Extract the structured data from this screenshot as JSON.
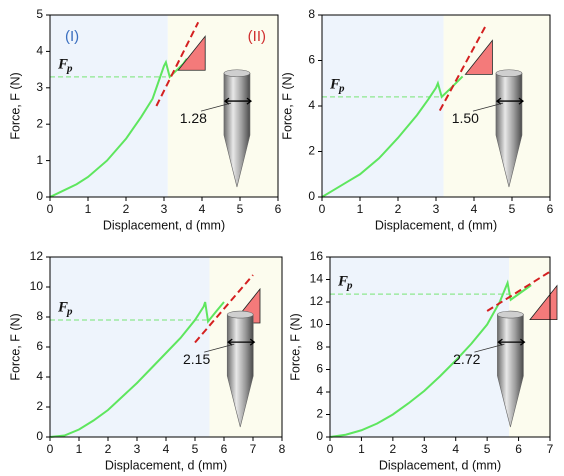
{
  "chart_data": [
    {
      "type": "line",
      "xlabel": "Displacement, d (mm)",
      "ylabel": "Force, F (N)",
      "xlim": [
        0,
        6
      ],
      "ylim": [
        0,
        5
      ],
      "xticks": [
        0,
        1,
        2,
        3,
        4,
        5,
        6
      ],
      "yticks": [
        0,
        1,
        2,
        3,
        4,
        5
      ],
      "region_boundary": 3.1,
      "region_labels": [
        "(I)",
        "(II)"
      ],
      "series": [
        {
          "color": "#5ee65e",
          "x": [
            0,
            0.3,
            0.7,
            1.0,
            1.5,
            2.0,
            2.4,
            2.7,
            2.9,
            3.0,
            3.05,
            3.15,
            3.3,
            3.5,
            3.6
          ],
          "values": [
            0,
            0.15,
            0.35,
            0.55,
            1.0,
            1.6,
            2.2,
            2.7,
            3.3,
            3.6,
            3.7,
            3.3,
            3.45,
            3.65,
            3.8
          ]
        }
      ],
      "fp_line": {
        "x": [
          0,
          3.05
        ],
        "values": [
          3.3,
          3.3
        ]
      },
      "fp_symbol": "F",
      "fp_subscript": "p",
      "tangent": {
        "x": [
          2.8,
          3.9
        ],
        "values": [
          2.5,
          4.8
        ]
      },
      "diameter_label": "1.28"
    },
    {
      "type": "line",
      "xlabel": "Displacement, d (mm)",
      "ylabel": "Force, F (N)",
      "xlim": [
        0,
        6
      ],
      "ylim": [
        0,
        8
      ],
      "xticks": [
        0,
        1,
        2,
        3,
        4,
        5,
        6
      ],
      "yticks": [
        0,
        2,
        4,
        6,
        8
      ],
      "region_boundary": 3.2,
      "series": [
        {
          "color": "#5ee65e",
          "x": [
            0,
            0.3,
            0.7,
            1.0,
            1.5,
            2.0,
            2.5,
            2.8,
            3.0,
            3.05,
            3.15,
            3.4,
            3.7
          ],
          "values": [
            0,
            0.3,
            0.7,
            1.0,
            1.7,
            2.6,
            3.6,
            4.3,
            4.8,
            5.0,
            4.4,
            4.8,
            5.3
          ]
        }
      ],
      "fp_line": {
        "x": [
          0,
          3.1
        ],
        "values": [
          4.4,
          4.4
        ]
      },
      "fp_symbol": "F",
      "fp_subscript": "p",
      "tangent": {
        "x": [
          3.1,
          4.3
        ],
        "values": [
          3.8,
          7.5
        ]
      },
      "diameter_label": "1.50"
    },
    {
      "type": "line",
      "xlabel": "Displacement, d (mm)",
      "ylabel": "Force, F (N)",
      "xlim": [
        0,
        8
      ],
      "ylim": [
        0,
        12
      ],
      "xticks": [
        0,
        1,
        2,
        3,
        4,
        5,
        6,
        7,
        8
      ],
      "yticks": [
        0,
        2,
        4,
        6,
        8,
        10,
        12
      ],
      "region_boundary": 5.5,
      "series": [
        {
          "color": "#5ee65e",
          "x": [
            0,
            0.5,
            1,
            1.5,
            2,
            2.5,
            3,
            3.5,
            4,
            4.5,
            5,
            5.3,
            5.35,
            5.45,
            5.7,
            6.0
          ],
          "values": [
            0,
            0.1,
            0.5,
            1.1,
            1.8,
            2.7,
            3.6,
            4.6,
            5.6,
            6.6,
            7.8,
            8.7,
            9.0,
            7.7,
            8.3,
            9.0
          ]
        }
      ],
      "fp_line": {
        "x": [
          0,
          5.4
        ],
        "values": [
          7.8,
          7.8
        ]
      },
      "fp_symbol": "F",
      "fp_subscript": "p",
      "tangent": {
        "x": [
          5.0,
          7.0
        ],
        "values": [
          6.3,
          10.8
        ]
      },
      "diameter_label": "2.15"
    },
    {
      "type": "line",
      "xlabel": "Displacement, d (mm)",
      "ylabel": "Force, F (N)",
      "xlim": [
        0,
        7
      ],
      "ylim": [
        0,
        16
      ],
      "xticks": [
        0,
        1,
        2,
        3,
        4,
        5,
        6,
        7
      ],
      "yticks": [
        0,
        2,
        4,
        6,
        8,
        10,
        12,
        14,
        16
      ],
      "region_boundary": 5.7,
      "series": [
        {
          "color": "#5ee65e",
          "x": [
            0,
            0.5,
            1,
            1.5,
            2,
            2.5,
            3,
            3.5,
            4,
            4.5,
            5,
            5.4,
            5.65,
            5.75,
            6.0,
            6.4
          ],
          "values": [
            0,
            0.2,
            0.6,
            1.2,
            2.0,
            3.0,
            4.1,
            5.4,
            6.8,
            8.3,
            10.0,
            12.0,
            13.7,
            12.2,
            12.7,
            13.5
          ]
        }
      ],
      "fp_line": {
        "x": [
          0,
          5.7
        ],
        "values": [
          12.7,
          12.7
        ]
      },
      "fp_symbol": "F",
      "fp_subscript": "p",
      "tangent": {
        "x": [
          5.0,
          7.0
        ],
        "values": [
          11.2,
          14.7
        ]
      },
      "diameter_label": "2.72"
    }
  ]
}
